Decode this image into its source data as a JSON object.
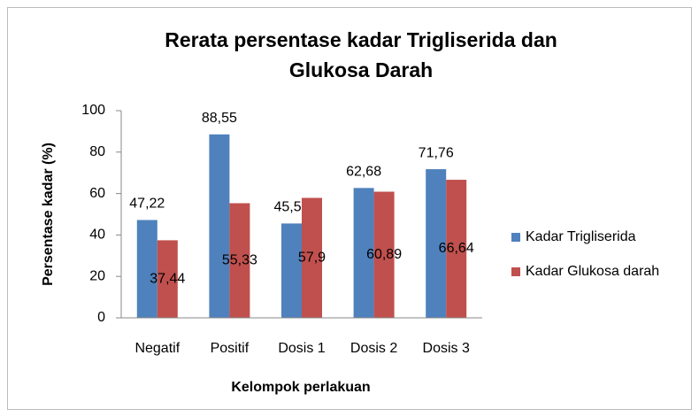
{
  "chart_data": {
    "type": "bar",
    "title": [
      "Rerata persentase kadar Trigliserida dan",
      "Glukosa Darah"
    ],
    "xlabel": "Kelompok perlakuan",
    "ylabel": "Persentase kadar (%)",
    "categories": [
      "Negatif",
      "Positif",
      "Dosis 1",
      "Dosis 2",
      "Dosis 3"
    ],
    "series": [
      {
        "name": "Kadar Trigliserida",
        "color": "#4f81bd",
        "values": [
          47.22,
          88.55,
          45.55,
          62.68,
          71.76
        ],
        "value_labels": [
          "47,22",
          "88,55",
          "45,55",
          "62,68",
          "71,76"
        ]
      },
      {
        "name": "Kadar Glukosa darah",
        "color": "#c0504d",
        "values": [
          37.44,
          55.33,
          57.9,
          60.89,
          66.64
        ],
        "value_labels": [
          "37,44",
          "55,33",
          "57,9",
          "60,89",
          "66,64"
        ]
      }
    ],
    "ylim": [
      0,
      100
    ],
    "yticks": [
      0,
      20,
      40,
      60,
      80,
      100
    ],
    "grid": false,
    "legend": "right"
  }
}
